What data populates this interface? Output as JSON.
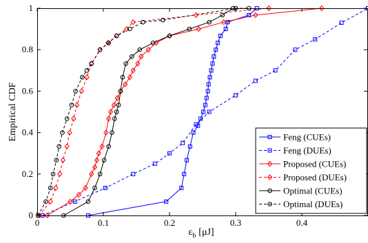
{
  "chart_data": {
    "type": "line",
    "title": "",
    "xlabel": "ε",
    "xlabel_sub": "b",
    "xlabel_unit": "[μJ]",
    "ylabel": "Empirical CDF",
    "xlim": [
      0,
      0.5
    ],
    "ylim": [
      0,
      1
    ],
    "xticks": [
      0,
      0.1,
      0.2,
      0.3,
      0.4
    ],
    "xtick_labels": [
      "0",
      "0.1",
      "0.2",
      "0.3",
      "0.4"
    ],
    "yticks": [
      0,
      0.2,
      0.4,
      0.6,
      0.8,
      1
    ],
    "ytick_labels": [
      "0",
      "0.2",
      "0.4",
      "0.6",
      "0.8",
      "1"
    ],
    "grid": false,
    "legend_position": "bottom-right",
    "series": [
      {
        "name": "Feng (CUEs)",
        "color": "#0000ff",
        "dash": "solid",
        "marker": "square",
        "points": [
          [
            0.077,
            0.0
          ],
          [
            0.195,
            0.067
          ],
          [
            0.218,
            0.133
          ],
          [
            0.222,
            0.2
          ],
          [
            0.226,
            0.267
          ],
          [
            0.231,
            0.333
          ],
          [
            0.236,
            0.4
          ],
          [
            0.243,
            0.433
          ],
          [
            0.247,
            0.467
          ],
          [
            0.251,
            0.5
          ],
          [
            0.254,
            0.533
          ],
          [
            0.256,
            0.567
          ],
          [
            0.258,
            0.6
          ],
          [
            0.259,
            0.633
          ],
          [
            0.261,
            0.667
          ],
          [
            0.263,
            0.7
          ],
          [
            0.265,
            0.733
          ],
          [
            0.267,
            0.767
          ],
          [
            0.27,
            0.8
          ],
          [
            0.273,
            0.833
          ],
          [
            0.277,
            0.867
          ],
          [
            0.285,
            0.9
          ],
          [
            0.288,
            0.933
          ],
          [
            0.32,
            0.967
          ],
          [
            0.332,
            1.0
          ]
        ]
      },
      {
        "name": "Feng (DUEs)",
        "color": "#0000ff",
        "dash": "dashed",
        "marker": "square",
        "points": [
          [
            0.008,
            0.0
          ],
          [
            0.057,
            0.067
          ],
          [
            0.103,
            0.133
          ],
          [
            0.145,
            0.2
          ],
          [
            0.178,
            0.25
          ],
          [
            0.2,
            0.3
          ],
          [
            0.22,
            0.35
          ],
          [
            0.24,
            0.44
          ],
          [
            0.26,
            0.5
          ],
          [
            0.3,
            0.58
          ],
          [
            0.33,
            0.65
          ],
          [
            0.36,
            0.7
          ],
          [
            0.39,
            0.8
          ],
          [
            0.42,
            0.85
          ],
          [
            0.46,
            0.93
          ],
          [
            0.5,
            1.0
          ]
        ]
      },
      {
        "name": "Proposed (CUEs)",
        "color": "#ff0000",
        "dash": "solid",
        "marker": "diamond",
        "points": [
          [
            0.015,
            0.0
          ],
          [
            0.05,
            0.067
          ],
          [
            0.063,
            0.1
          ],
          [
            0.073,
            0.133
          ],
          [
            0.082,
            0.2
          ],
          [
            0.087,
            0.233
          ],
          [
            0.09,
            0.267
          ],
          [
            0.093,
            0.3
          ],
          [
            0.098,
            0.333
          ],
          [
            0.104,
            0.4
          ],
          [
            0.108,
            0.467
          ],
          [
            0.111,
            0.5
          ],
          [
            0.116,
            0.533
          ],
          [
            0.121,
            0.567
          ],
          [
            0.126,
            0.6
          ],
          [
            0.133,
            0.633
          ],
          [
            0.14,
            0.667
          ],
          [
            0.145,
            0.7
          ],
          [
            0.152,
            0.733
          ],
          [
            0.157,
            0.767
          ],
          [
            0.168,
            0.8
          ],
          [
            0.18,
            0.833
          ],
          [
            0.2,
            0.867
          ],
          [
            0.244,
            0.9
          ],
          [
            0.282,
            0.933
          ],
          [
            0.33,
            0.967
          ],
          [
            0.43,
            1.0
          ]
        ]
      },
      {
        "name": "Proposed (DUEs)",
        "color": "#ff0000",
        "dash": "dashed",
        "marker": "diamond",
        "points": [
          [
            0.003,
            0.0
          ],
          [
            0.02,
            0.067
          ],
          [
            0.028,
            0.133
          ],
          [
            0.034,
            0.2
          ],
          [
            0.039,
            0.267
          ],
          [
            0.045,
            0.333
          ],
          [
            0.049,
            0.4
          ],
          [
            0.055,
            0.467
          ],
          [
            0.06,
            0.533
          ],
          [
            0.067,
            0.6
          ],
          [
            0.075,
            0.667
          ],
          [
            0.082,
            0.733
          ],
          [
            0.095,
            0.8
          ],
          [
            0.107,
            0.833
          ],
          [
            0.12,
            0.867
          ],
          [
            0.135,
            0.9
          ],
          [
            0.145,
            0.933
          ],
          [
            0.24,
            0.967
          ],
          [
            0.35,
            1.0
          ]
        ]
      },
      {
        "name": "Optimal (CUEs)",
        "color": "#000000",
        "dash": "solid",
        "marker": "circle",
        "points": [
          [
            0.04,
            0.0
          ],
          [
            0.077,
            0.067
          ],
          [
            0.087,
            0.133
          ],
          [
            0.095,
            0.2
          ],
          [
            0.101,
            0.267
          ],
          [
            0.108,
            0.333
          ],
          [
            0.113,
            0.4
          ],
          [
            0.117,
            0.467
          ],
          [
            0.12,
            0.5
          ],
          [
            0.123,
            0.533
          ],
          [
            0.126,
            0.6
          ],
          [
            0.129,
            0.667
          ],
          [
            0.134,
            0.733
          ],
          [
            0.143,
            0.767
          ],
          [
            0.155,
            0.8
          ],
          [
            0.175,
            0.833
          ],
          [
            0.2,
            0.867
          ],
          [
            0.23,
            0.9
          ],
          [
            0.26,
            0.933
          ],
          [
            0.28,
            0.967
          ],
          [
            0.296,
            1.0
          ]
        ]
      },
      {
        "name": "Optimal (DUEs)",
        "color": "#000000",
        "dash": "dashed",
        "marker": "circle",
        "points": [
          [
            0.001,
            0.0
          ],
          [
            0.013,
            0.067
          ],
          [
            0.02,
            0.133
          ],
          [
            0.024,
            0.2
          ],
          [
            0.029,
            0.267
          ],
          [
            0.033,
            0.333
          ],
          [
            0.038,
            0.4
          ],
          [
            0.045,
            0.467
          ],
          [
            0.052,
            0.533
          ],
          [
            0.058,
            0.6
          ],
          [
            0.068,
            0.667
          ],
          [
            0.075,
            0.7
          ],
          [
            0.082,
            0.733
          ],
          [
            0.095,
            0.8
          ],
          [
            0.108,
            0.833
          ],
          [
            0.12,
            0.867
          ],
          [
            0.14,
            0.9
          ],
          [
            0.16,
            0.933
          ],
          [
            0.19,
            0.943
          ],
          [
            0.3,
            1.0
          ],
          [
            0.32,
            1.0
          ]
        ]
      }
    ]
  }
}
